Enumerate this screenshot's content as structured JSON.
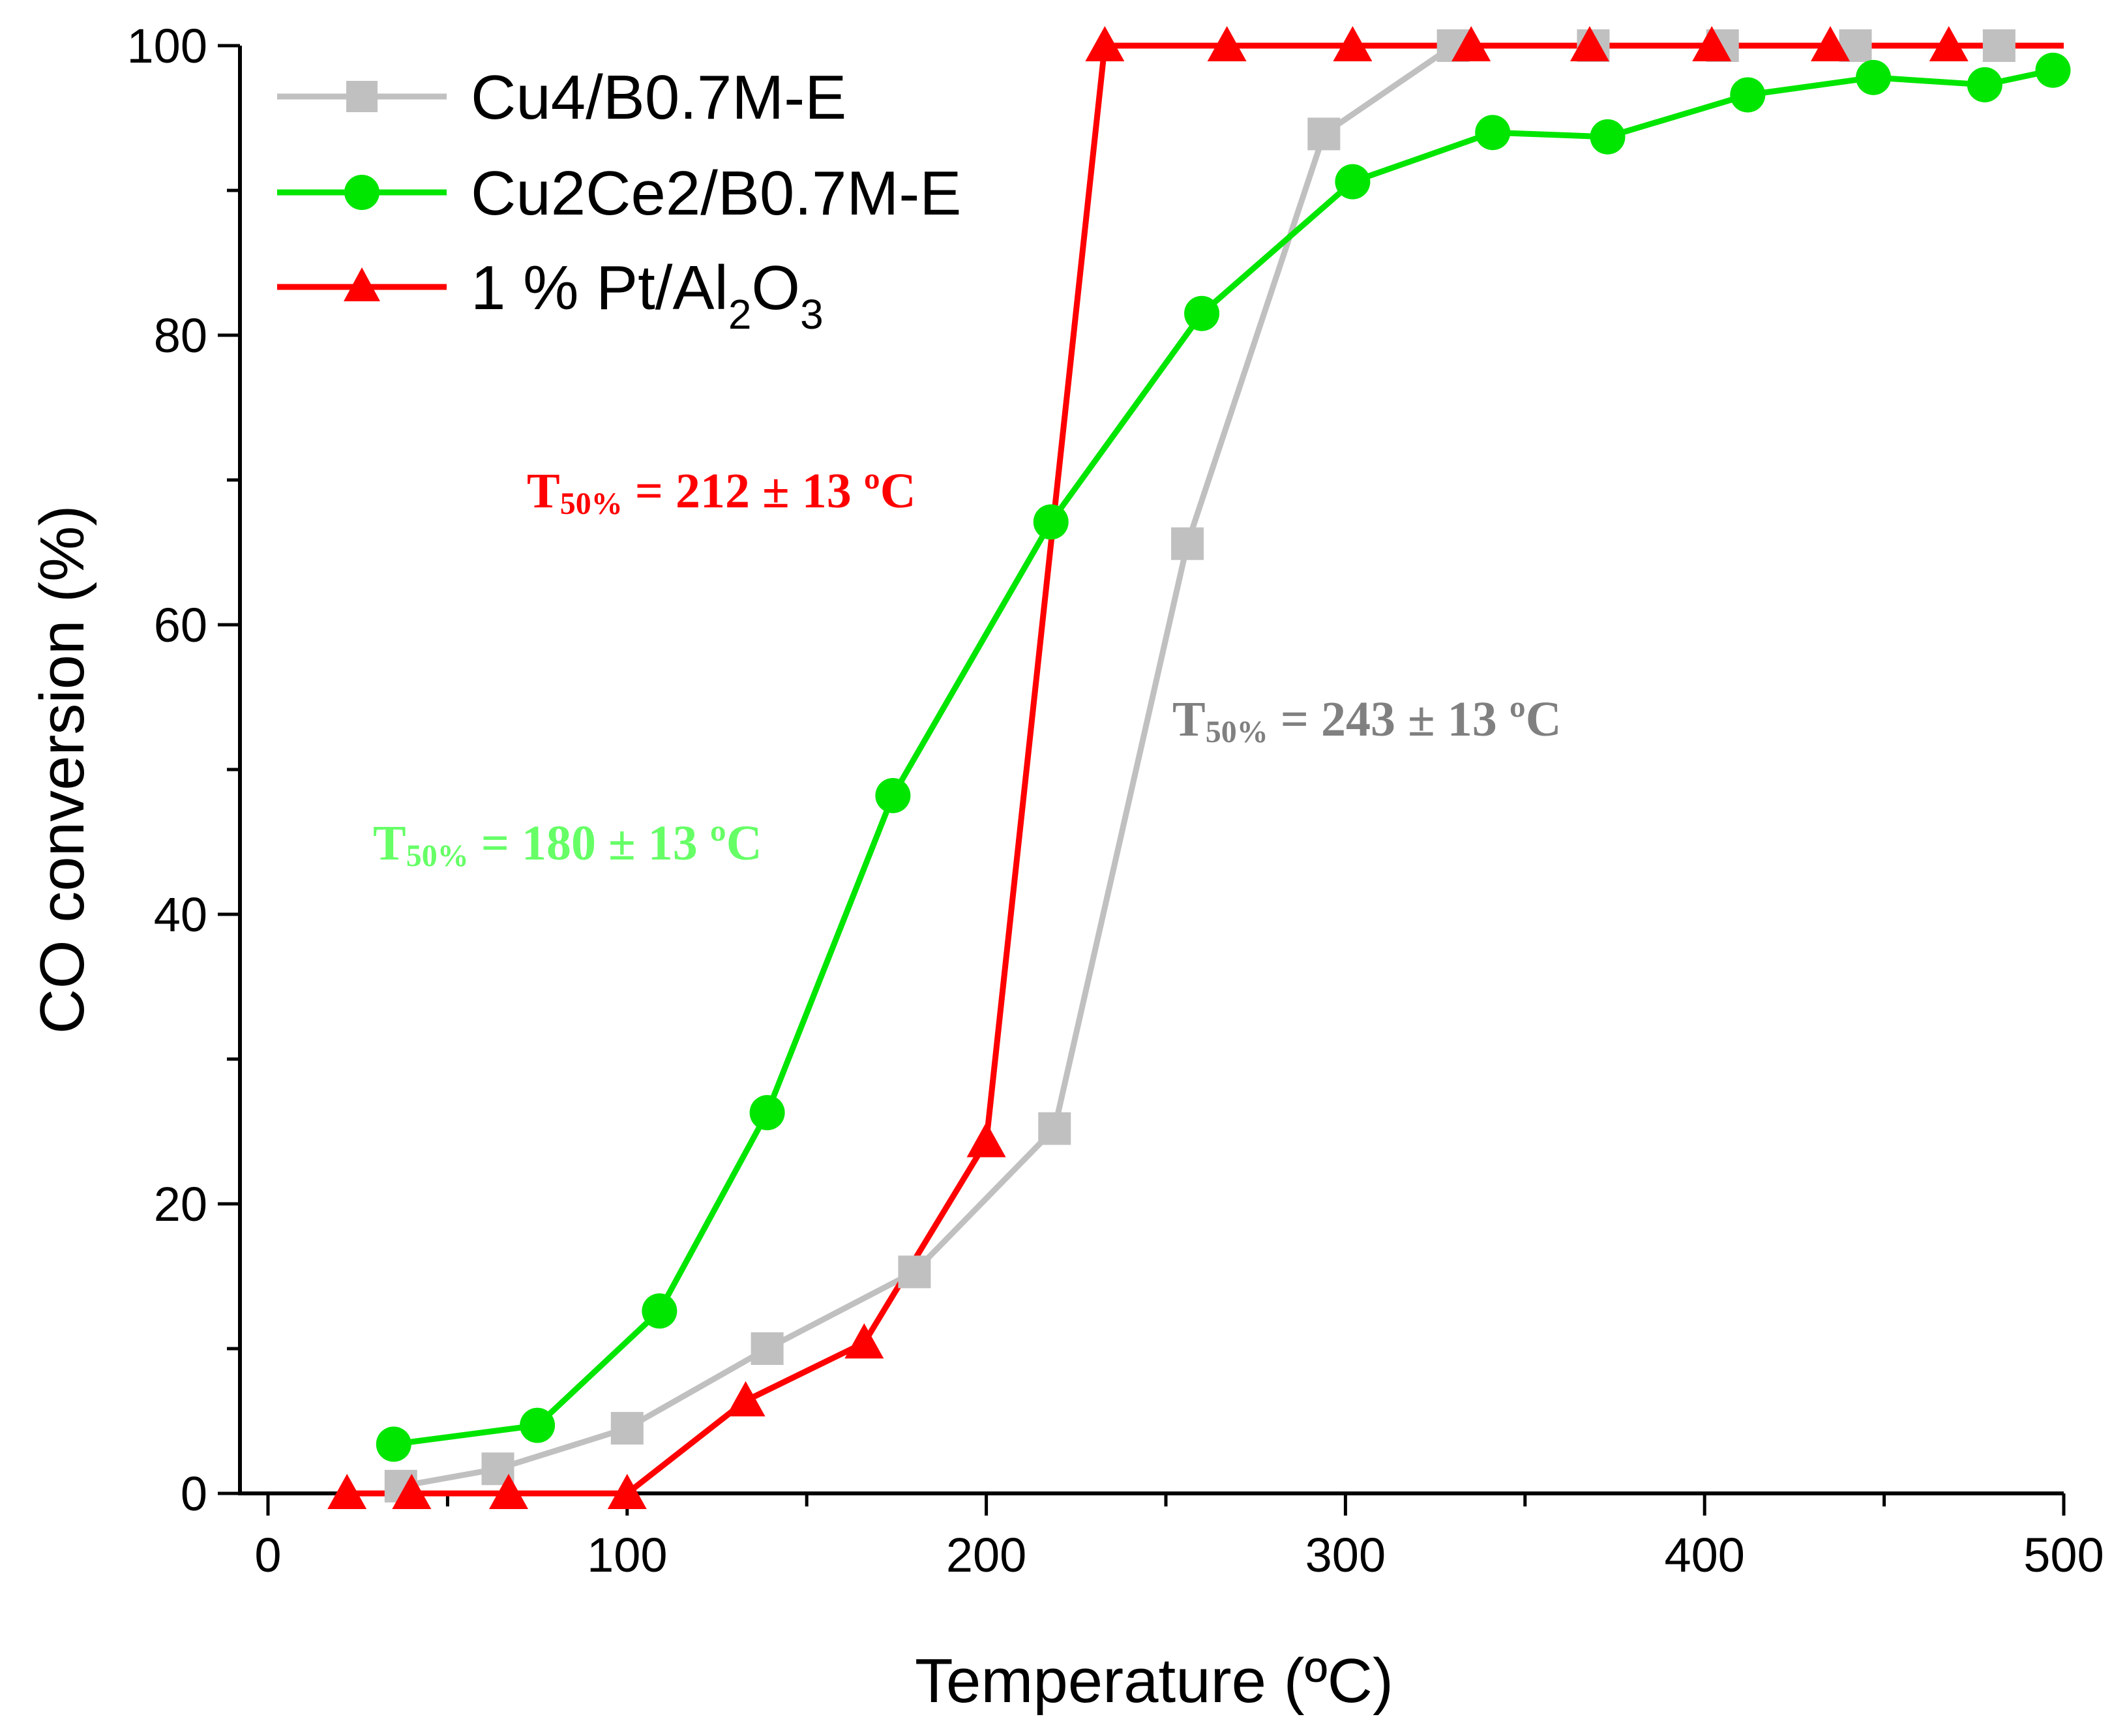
{
  "chart_data": {
    "type": "line",
    "title": "",
    "xlabel": "Temperature (ºC)",
    "ylabel": "CO conversion (%)",
    "xlim": [
      0,
      500
    ],
    "ylim": [
      0,
      100
    ],
    "x_ticks": [
      0,
      100,
      200,
      300,
      400,
      500
    ],
    "y_ticks": [
      0,
      20,
      40,
      60,
      80,
      100
    ],
    "grid": false,
    "legend_position": "top-left",
    "series": [
      {
        "name": "Cu4/B0.7M-E",
        "color": "#c0c0c0",
        "marker": "square",
        "x": [
          37,
          64,
          100,
          139,
          180,
          219,
          256,
          294,
          330,
          369,
          405,
          442,
          482
        ],
        "y": [
          0.5,
          1.7,
          4.5,
          10,
          15.3,
          25.2,
          65.6,
          93.9,
          100,
          100,
          100,
          100,
          100
        ]
      },
      {
        "name": "Cu2Ce2/B0.7M-E",
        "color": "#00e600",
        "marker": "circle",
        "x": [
          35,
          75,
          109,
          139,
          174,
          218,
          260,
          302,
          341,
          373,
          412,
          447,
          478,
          497
        ],
        "y": [
          3.4,
          4.7,
          12.6,
          26.3,
          48.2,
          67.1,
          81.5,
          90.6,
          94,
          93.7,
          96.6,
          97.8,
          97.3,
          98.3
        ]
      },
      {
        "name": "1 % Pt/Al",
        "name_sub1": "2",
        "name_mid": "O",
        "name_sub2": "3",
        "color": "#ff0000",
        "marker": "triangle",
        "x": [
          22,
          40,
          67,
          100,
          133,
          166,
          200,
          233,
          267,
          302,
          335,
          368,
          402,
          435,
          468
        ],
        "y": [
          0,
          0,
          0,
          0,
          6.4,
          10.4,
          24.3,
          100,
          100,
          100,
          100,
          100,
          100,
          100,
          100
        ]
      }
    ],
    "annotations": [
      {
        "prefix": "T",
        "sub": "50%",
        "text": " = 212 ± 13 ºC",
        "color": "#ff0000"
      },
      {
        "prefix": "T",
        "sub": "50%",
        "text": " = 243 ± 13 ºC",
        "color": "#808080"
      },
      {
        "prefix": "T",
        "sub": "50%",
        "text": " = 180 ± 13 ºC",
        "color": "#66ff66"
      }
    ]
  }
}
